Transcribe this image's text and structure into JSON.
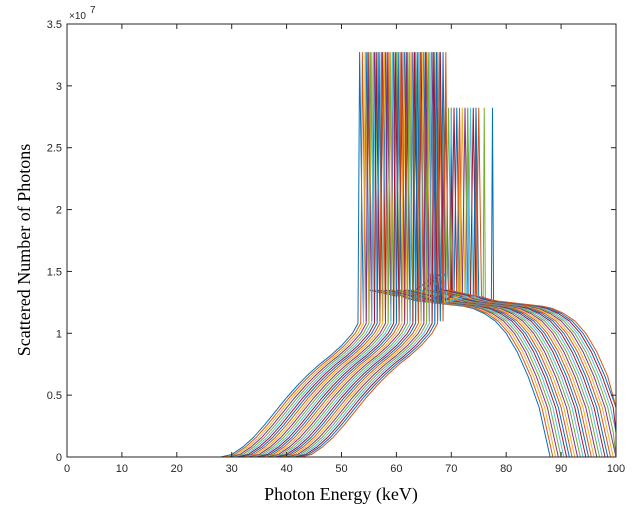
{
  "chart_data": {
    "type": "line",
    "title": "",
    "xlabel": "Photon Energy (keV)",
    "ylabel": "Scattered Number of Photons",
    "y_exponent_label": "×10",
    "y_exponent_value": "7",
    "xlim": [
      0,
      100
    ],
    "ylim": [
      0,
      35000000
    ],
    "xticks": [
      "0",
      "10",
      "20",
      "30",
      "40",
      "50",
      "60",
      "70",
      "80",
      "90",
      "100"
    ],
    "yticks": [
      "0",
      "0.5",
      "1",
      "1.5",
      "2",
      "2.5",
      "3",
      "3.5"
    ],
    "grid": false,
    "legend": "none",
    "box": true,
    "series_colors": [
      "#0072BD",
      "#D95319",
      "#EDB120",
      "#7E2F8E",
      "#77AC30",
      "#4DBEEE",
      "#A2142F"
    ],
    "shift_step_keV": 0.5,
    "series_count": 30,
    "base_curve": {
      "x": [
        0,
        28,
        30,
        32,
        34,
        36,
        38,
        40,
        42,
        44,
        46,
        48,
        50,
        52,
        53,
        53.3,
        54,
        54.5,
        55,
        60,
        60.5,
        61,
        62,
        64,
        66,
        68,
        70,
        72,
        74,
        76,
        78,
        80,
        82,
        84,
        86,
        87,
        88
      ],
      "y": [
        0,
        0,
        200000,
        800000,
        1600000,
        2600000,
        3700000,
        4800000,
        5800000,
        6700000,
        7500000,
        8200000,
        9000000,
        10000000,
        10800000,
        32700000,
        11000000,
        32700000,
        13500000,
        13000000,
        28200000,
        13000000,
        12800000,
        12600000,
        12500000,
        12400000,
        12300000,
        12200000,
        12000000,
        11600000,
        11000000,
        10000000,
        8500000,
        6500000,
        4000000,
        2000000,
        0
      ]
    },
    "extra_spikes": [
      {
        "x": 63.5,
        "y": 28200000
      },
      {
        "x": 65.0,
        "y": 14800000
      }
    ]
  }
}
